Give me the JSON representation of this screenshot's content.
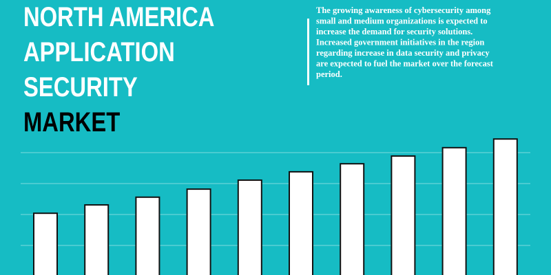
{
  "chart_data": {
    "type": "bar",
    "title": [
      "NORTH AMERICA",
      "APPLICATION",
      "SECURITY",
      "MARKET"
    ],
    "description": [
      "The growing awareness of cybersecurity among",
      "small and medium organizations is expected to",
      "increase the demand for security solutions.",
      "Increased government initiatives in the region",
      "regarding increase in data security and privacy",
      "are expected to fuel the market over the forecast",
      "period."
    ],
    "values": [
      2.04,
      2.31,
      2.56,
      2.82,
      3.11,
      3.38,
      3.64,
      3.89,
      4.16,
      4.44
    ],
    "color": "#ffffff",
    "ylim": [
      0,
      5
    ],
    "yticks": [
      1,
      2,
      3,
      4
    ],
    "grid": true
  }
}
